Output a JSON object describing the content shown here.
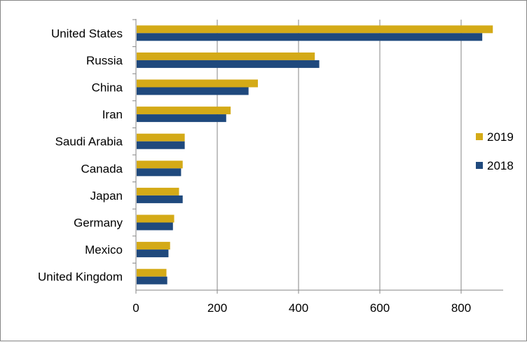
{
  "chart_data": {
    "type": "bar",
    "orientation": "horizontal",
    "title": "",
    "xlabel": "",
    "ylabel": "",
    "categories": [
      "United States",
      "Russia",
      "China",
      "Iran",
      "Saudi Arabia",
      "Canada",
      "Japan",
      "Germany",
      "Mexico",
      "United Kingdom"
    ],
    "series": [
      {
        "name": "2019",
        "color": "#D4AA17",
        "values": [
          878,
          440,
          300,
          233,
          120,
          115,
          106,
          94,
          84,
          75
        ]
      },
      {
        "name": "2018",
        "color": "#1F497D",
        "values": [
          852,
          451,
          277,
          222,
          120,
          111,
          115,
          91,
          80,
          77
        ]
      }
    ],
    "xlim": [
      0,
      900
    ],
    "xticks": [
      0,
      200,
      400,
      600,
      800
    ],
    "xtick_labels": [
      "0",
      "200",
      "400",
      "600",
      "800"
    ],
    "grid": "vertical",
    "legend_position": "right"
  }
}
